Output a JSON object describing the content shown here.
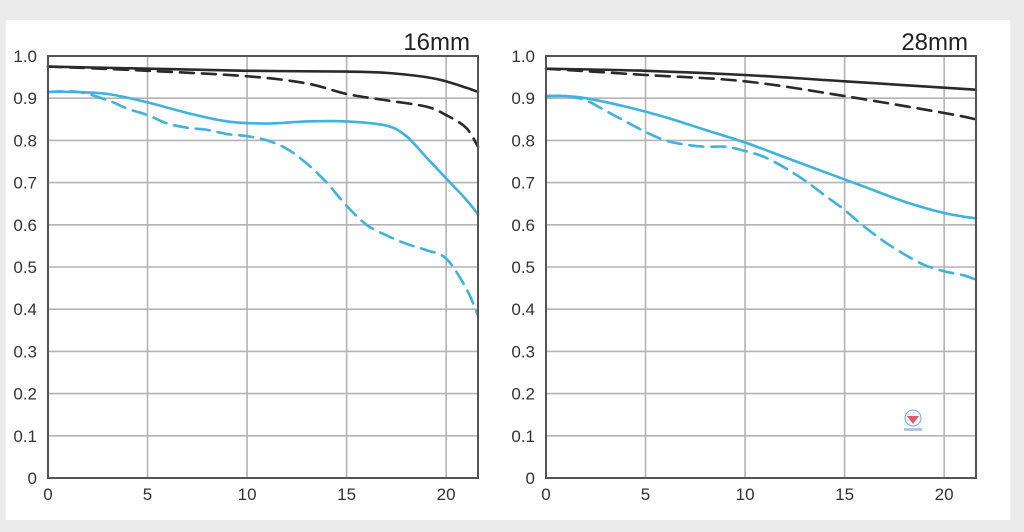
{
  "page": {
    "background": "#ebebeb",
    "panel_background": "#ffffff"
  },
  "colors": {
    "black_line": "#2a2a2a",
    "blue_line": "#3fb2de",
    "grid": "#b4b4b4"
  },
  "chart_data": [
    {
      "type": "line",
      "title": "16mm",
      "xlabel": "",
      "ylabel": "",
      "xlim": [
        0,
        21.6
      ],
      "ylim": [
        0,
        1.0
      ],
      "x_ticks": [
        0,
        5,
        10,
        15,
        20
      ],
      "y_ticks": [
        0,
        0.1,
        0.2,
        0.3,
        0.4,
        0.5,
        0.6,
        0.7,
        0.8,
        0.9,
        1.0
      ],
      "x_tick_labels": [
        "0",
        "5",
        "10",
        "15",
        "20"
      ],
      "y_tick_labels": [
        "0",
        "0.1",
        "0.2",
        "0.3",
        "0.4",
        "0.5",
        "0.6",
        "0.7",
        "0.8",
        "0.9",
        "1.0"
      ],
      "grid": true,
      "series": [
        {
          "color": "#2a2a2a",
          "dash": false,
          "x": [
            0,
            5,
            10,
            15,
            17,
            19,
            20,
            21,
            21.6
          ],
          "y": [
            0.975,
            0.97,
            0.965,
            0.963,
            0.96,
            0.95,
            0.94,
            0.925,
            0.915
          ]
        },
        {
          "color": "#2a2a2a",
          "dash": true,
          "x": [
            0,
            5,
            10,
            13,
            15,
            17,
            19,
            20,
            21,
            21.6
          ],
          "y": [
            0.975,
            0.965,
            0.952,
            0.935,
            0.91,
            0.895,
            0.88,
            0.86,
            0.83,
            0.785
          ]
        },
        {
          "color": "#3fb2de",
          "dash": false,
          "x": [
            0,
            1,
            3,
            5,
            7,
            9,
            11,
            13,
            15,
            17,
            18,
            19,
            20,
            21,
            21.6
          ],
          "y": [
            0.915,
            0.915,
            0.91,
            0.89,
            0.865,
            0.845,
            0.84,
            0.845,
            0.845,
            0.835,
            0.81,
            0.76,
            0.71,
            0.66,
            0.625
          ]
        },
        {
          "color": "#3fb2de",
          "dash": true,
          "x": [
            0,
            1.5,
            3,
            4,
            5,
            6,
            7,
            8,
            9,
            10,
            11,
            12,
            13,
            14,
            15,
            16,
            17,
            18,
            19,
            20,
            21,
            21.6
          ],
          "y": [
            0.915,
            0.915,
            0.895,
            0.875,
            0.86,
            0.84,
            0.83,
            0.825,
            0.815,
            0.81,
            0.8,
            0.78,
            0.745,
            0.7,
            0.645,
            0.6,
            0.575,
            0.555,
            0.54,
            0.52,
            0.45,
            0.385
          ]
        }
      ]
    },
    {
      "type": "line",
      "title": "28mm",
      "xlabel": "",
      "ylabel": "",
      "xlim": [
        0,
        21.6
      ],
      "ylim": [
        0,
        1.0
      ],
      "x_ticks": [
        0,
        5,
        10,
        15,
        20
      ],
      "y_ticks": [
        0,
        0.1,
        0.2,
        0.3,
        0.4,
        0.5,
        0.6,
        0.7,
        0.8,
        0.9,
        1.0
      ],
      "x_tick_labels": [
        "0",
        "5",
        "10",
        "15",
        "20"
      ],
      "y_tick_labels": [
        "0",
        "0.1",
        "0.2",
        "0.3",
        "0.4",
        "0.5",
        "0.6",
        "0.7",
        "0.8",
        "0.9",
        "1.0"
      ],
      "grid": true,
      "series": [
        {
          "color": "#2a2a2a",
          "dash": false,
          "x": [
            0,
            5,
            10,
            15,
            20,
            21.6
          ],
          "y": [
            0.97,
            0.965,
            0.955,
            0.94,
            0.925,
            0.92
          ]
        },
        {
          "color": "#2a2a2a",
          "dash": true,
          "x": [
            0,
            5,
            10,
            15,
            20,
            21.6
          ],
          "y": [
            0.97,
            0.955,
            0.94,
            0.905,
            0.865,
            0.85
          ]
        },
        {
          "color": "#3fb2de",
          "dash": false,
          "x": [
            0,
            1,
            2,
            4,
            6,
            8,
            10,
            12,
            14,
            16,
            18,
            20,
            21.6
          ],
          "y": [
            0.905,
            0.905,
            0.9,
            0.88,
            0.855,
            0.825,
            0.795,
            0.76,
            0.725,
            0.69,
            0.655,
            0.628,
            0.615
          ]
        },
        {
          "color": "#3fb2de",
          "dash": true,
          "x": [
            0,
            1,
            2,
            3,
            4,
            5,
            6,
            7,
            8,
            9,
            10,
            11,
            12,
            13,
            14,
            15,
            16,
            17,
            18,
            19,
            20,
            21,
            21.6
          ],
          "y": [
            0.905,
            0.905,
            0.895,
            0.87,
            0.845,
            0.82,
            0.8,
            0.79,
            0.785,
            0.785,
            0.775,
            0.76,
            0.735,
            0.705,
            0.67,
            0.635,
            0.595,
            0.56,
            0.53,
            0.505,
            0.49,
            0.48,
            0.47
          ]
        }
      ]
    }
  ]
}
